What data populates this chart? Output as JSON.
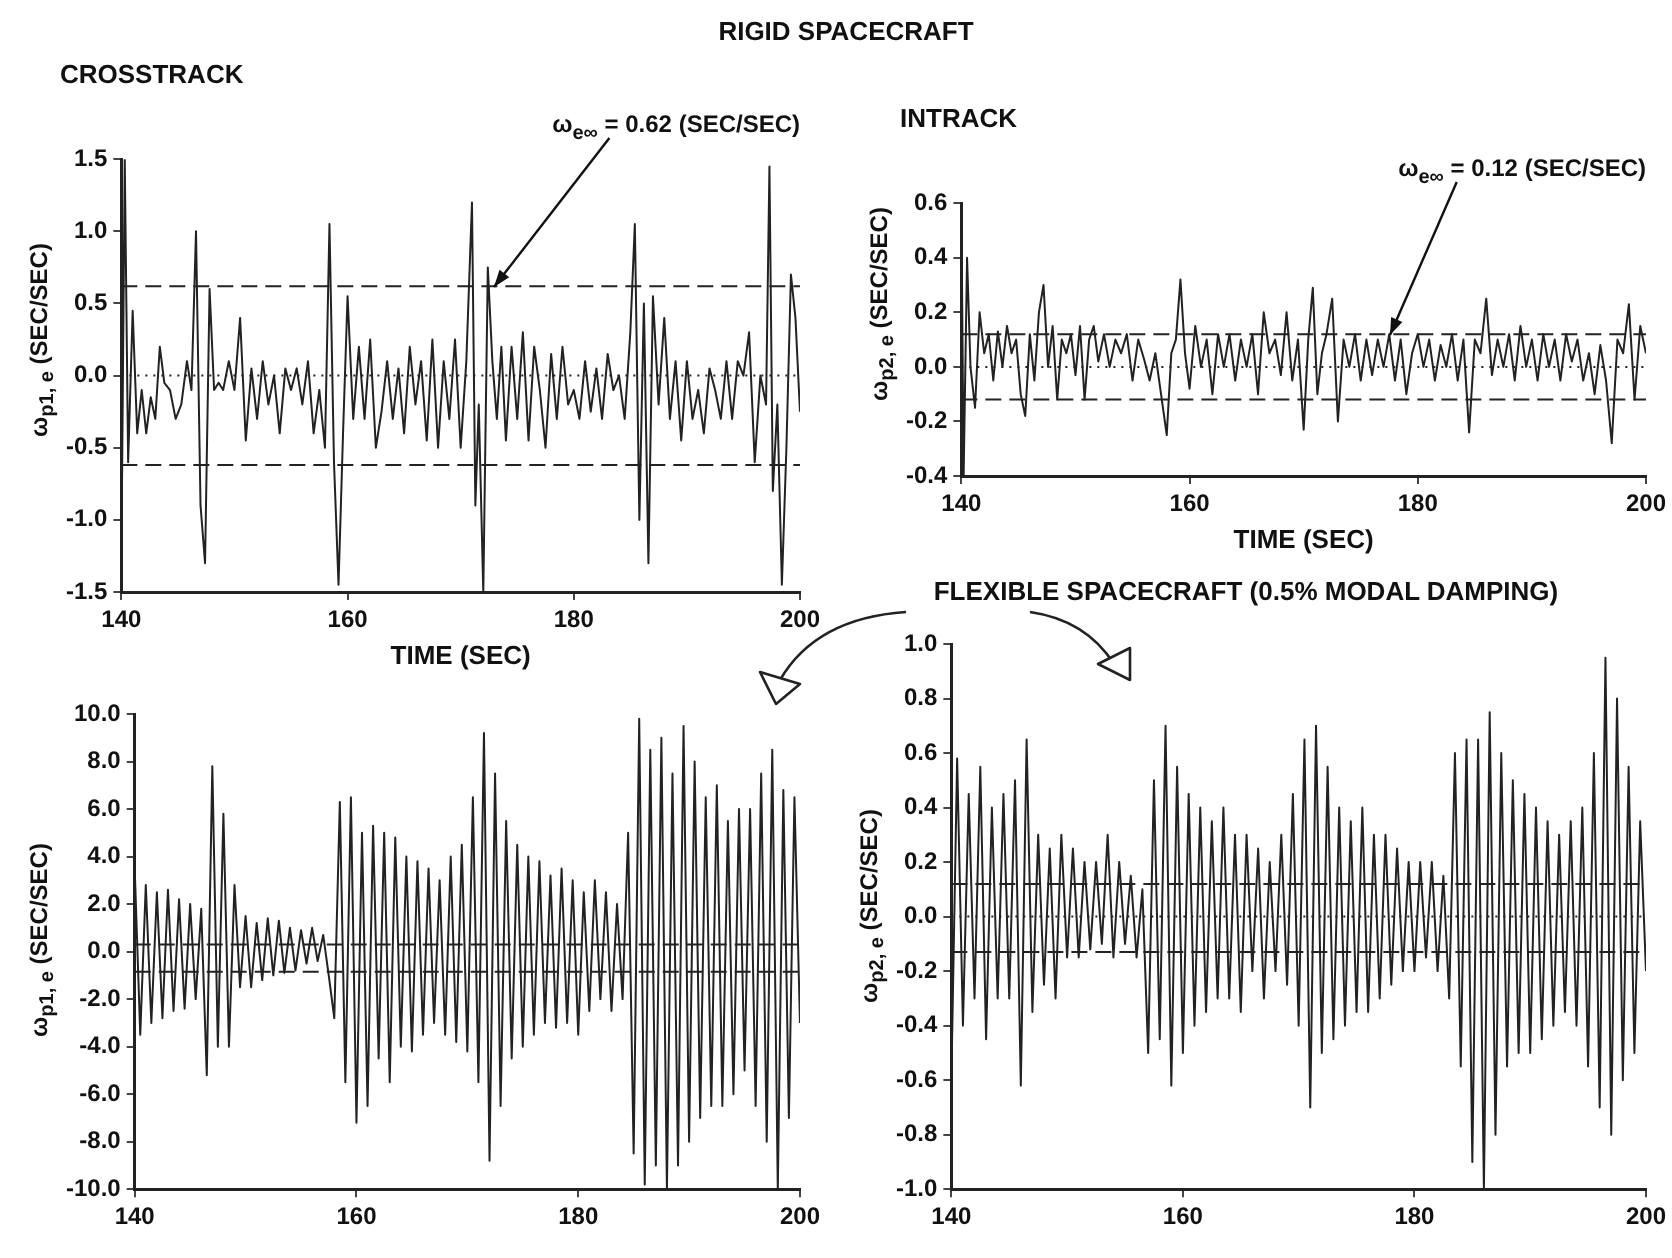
{
  "chart_data": [
    {
      "type": "line",
      "title": "RIGID SPACECRAFT",
      "subtitle": "CROSSTRACK",
      "xlabel": "TIME (SEC)",
      "ylabel": "ω$_{p1, e}$ (SEC/SEC)",
      "annotations": [
        {
          "text": "ω$_{e∞}$ = 0.62 (SEC/SEC)",
          "x": 173,
          "y": 0.62
        }
      ],
      "x": [
        140,
        140.3,
        140.6,
        141,
        141.4,
        141.8,
        142.2,
        142.6,
        143,
        143.4,
        143.8,
        144.3,
        144.8,
        145.3,
        145.8,
        146.2,
        146.6,
        147,
        147.4,
        147.8,
        148.2,
        148.6,
        149,
        149.5,
        150,
        150.5,
        151,
        151.5,
        152,
        152.5,
        153,
        153.5,
        154,
        154.5,
        155,
        155.5,
        156,
        156.5,
        157,
        157.5,
        158,
        158.4,
        158.8,
        159.2,
        159.6,
        160,
        160.5,
        161,
        161.5,
        162,
        162.5,
        163,
        163.5,
        164,
        164.5,
        165,
        165.5,
        166,
        166.5,
        167,
        167.5,
        168,
        168.5,
        169,
        169.5,
        170,
        170.5,
        171,
        171.3,
        171.6,
        172,
        172.4,
        172.8,
        173.2,
        173.6,
        174,
        174.5,
        175,
        175.5,
        176,
        176.5,
        177,
        177.5,
        178,
        178.5,
        179,
        179.5,
        180,
        180.5,
        181,
        181.5,
        182,
        182.5,
        183,
        183.5,
        184,
        184.5,
        185,
        185.4,
        185.8,
        186.2,
        186.6,
        187,
        187.5,
        188,
        188.5,
        189,
        189.5,
        190,
        190.5,
        191,
        191.5,
        192,
        192.5,
        193,
        193.5,
        194,
        194.5,
        195,
        195.5,
        196,
        196.5,
        197,
        197.3,
        197.6,
        198,
        198.4,
        198.8,
        199.2,
        199.6,
        200
      ],
      "series": [
        {
          "color": "#222222",
          "values": [
            -1.3,
            1.5,
            -0.6,
            0.45,
            -0.4,
            -0.1,
            -0.4,
            -0.15,
            -0.3,
            0.2,
            -0.05,
            -0.1,
            -0.3,
            -0.2,
            0.1,
            -0.1,
            1.0,
            -0.9,
            -1.3,
            0.6,
            -0.1,
            -0.05,
            -0.1,
            0.1,
            -0.1,
            0.4,
            -0.45,
            0.05,
            -0.3,
            0.1,
            -0.2,
            0.0,
            -0.4,
            0.05,
            -0.1,
            0.05,
            -0.2,
            0.1,
            -0.4,
            -0.1,
            -0.5,
            1.05,
            -0.6,
            -1.45,
            -0.4,
            0.55,
            -0.3,
            0.2,
            -0.3,
            0.25,
            -0.5,
            -0.25,
            0.1,
            -0.3,
            0.05,
            -0.4,
            0.2,
            -0.2,
            0.1,
            -0.45,
            0.25,
            -0.5,
            0.1,
            -0.3,
            0.25,
            -0.5,
            0.1,
            1.2,
            -0.9,
            -0.2,
            -1.5,
            0.75,
            0.1,
            -0.3,
            0.2,
            -0.45,
            0.2,
            -0.3,
            0.3,
            -0.45,
            0.2,
            -0.1,
            -0.5,
            0.15,
            -0.3,
            0.2,
            -0.2,
            -0.1,
            -0.3,
            0.1,
            -0.25,
            0.05,
            -0.3,
            0.15,
            -0.1,
            0.0,
            -0.3,
            0.3,
            1.05,
            -1.0,
            0.5,
            -1.3,
            0.55,
            -0.2,
            0.4,
            -0.3,
            0.1,
            -0.45,
            0.1,
            -0.3,
            -0.1,
            -0.4,
            0.05,
            -0.1,
            -0.3,
            0.1,
            -0.3,
            0.1,
            0.0,
            0.3,
            -0.6,
            0.0,
            -0.2,
            1.45,
            -0.8,
            -0.2,
            -1.45,
            -0.5,
            0.7,
            0.4,
            -0.25
          ]
        }
      ],
      "xlim": [
        140,
        200
      ],
      "xticks": [
        140,
        160,
        180,
        200
      ],
      "ylim": [
        -1.5,
        1.5
      ],
      "yticks": [
        {
          "value": -1.5,
          "label": "-1.5"
        },
        {
          "value": -1,
          "label": "-1.0"
        },
        {
          "value": -0.5,
          "label": "-0.5"
        },
        {
          "value": 0,
          "label": "0.0"
        },
        {
          "value": 0.5,
          "label": "0.5"
        },
        {
          "value": 1,
          "label": "1.0"
        },
        {
          "value": 1.5,
          "label": "1.5"
        }
      ],
      "ref_lines": [
        {
          "axis": "y",
          "value": 0.62,
          "line_style": "dashed"
        },
        {
          "axis": "y",
          "value": -0.62,
          "line_style": "dashed"
        },
        {
          "axis": "y",
          "value": 0,
          "line_style": "dotted"
        }
      ]
    },
    {
      "type": "line",
      "subtitle": "INTRACK",
      "xlabel": "TIME (SEC)",
      "ylabel": "ω$_{p2, e}$ (SEC/SEC)",
      "annotations": [
        {
          "text": "ω$_{e∞}$ = 0.12 (SEC/SEC)",
          "x": 177.5,
          "y": 0.12
        }
      ],
      "x": [
        140,
        140.2,
        140.5,
        140.8,
        141.2,
        141.6,
        142,
        142.4,
        142.8,
        143.2,
        143.6,
        144,
        144.4,
        144.8,
        145.2,
        145.6,
        146,
        146.4,
        146.8,
        147.2,
        147.6,
        148,
        148.4,
        148.8,
        149.2,
        149.6,
        150,
        150.4,
        150.8,
        151.2,
        151.6,
        152,
        152.5,
        153,
        153.5,
        154,
        154.5,
        155,
        155.5,
        156,
        156.5,
        157,
        157.5,
        158,
        158.4,
        158.8,
        159.2,
        159.6,
        160,
        160.5,
        161,
        161.5,
        162,
        162.5,
        163,
        163.5,
        164,
        164.5,
        165,
        165.5,
        166,
        166.5,
        167,
        167.5,
        168,
        168.5,
        169,
        169.5,
        170,
        170.4,
        170.8,
        171.2,
        171.6,
        172,
        172.5,
        173,
        173.5,
        174,
        174.5,
        175,
        175.5,
        176,
        176.5,
        177,
        177.5,
        178,
        178.5,
        179,
        179.5,
        180,
        180.5,
        181,
        181.5,
        182,
        182.5,
        183,
        183.5,
        184,
        184.5,
        185,
        185.5,
        186,
        186.5,
        187,
        187.5,
        188,
        188.5,
        189,
        189.5,
        190,
        190.5,
        191,
        191.5,
        192,
        192.5,
        193,
        193.5,
        194,
        194.5,
        195,
        195.5,
        196,
        196.5,
        197,
        197.5,
        198,
        198.5,
        199,
        199.5,
        200
      ],
      "series": [
        {
          "color": "#222222",
          "values": [
            0.6,
            -0.4,
            0.4,
            0.0,
            -0.15,
            0.2,
            0.05,
            0.12,
            -0.05,
            0.13,
            0.0,
            0.15,
            0.05,
            0.1,
            -0.1,
            -0.18,
            0.12,
            -0.05,
            0.2,
            0.3,
            0.0,
            0.15,
            -0.12,
            0.1,
            0.05,
            0.12,
            -0.03,
            0.15,
            -0.12,
            0.1,
            0.15,
            0.02,
            0.12,
            0.0,
            0.1,
            0.05,
            0.12,
            -0.05,
            0.1,
            0.03,
            -0.05,
            0.05,
            -0.1,
            -0.25,
            0.05,
            0.1,
            0.32,
            0.05,
            -0.08,
            0.15,
            0.0,
            0.1,
            -0.1,
            0.12,
            0.0,
            0.12,
            -0.05,
            0.1,
            0.0,
            0.12,
            -0.1,
            0.2,
            0.05,
            0.1,
            -0.03,
            0.2,
            -0.05,
            0.1,
            -0.23,
            0.1,
            0.29,
            -0.1,
            0.05,
            0.12,
            0.25,
            -0.2,
            0.1,
            0.0,
            0.12,
            -0.05,
            0.1,
            -0.03,
            0.1,
            0.0,
            0.12,
            -0.05,
            0.1,
            -0.1,
            0.05,
            0.12,
            0.0,
            0.1,
            -0.05,
            0.08,
            0.0,
            0.12,
            -0.05,
            0.1,
            -0.24,
            0.1,
            0.05,
            0.25,
            -0.03,
            0.1,
            0.0,
            0.12,
            -0.05,
            0.15,
            0.0,
            0.1,
            -0.05,
            0.12,
            0.0,
            0.1,
            -0.05,
            0.12,
            0.02,
            0.1,
            -0.05,
            0.05,
            -0.1,
            0.08,
            -0.05,
            -0.28,
            0.1,
            0.05,
            0.23,
            -0.12,
            0.15,
            0.05
          ]
        }
      ],
      "xlim": [
        140,
        200
      ],
      "xticks": [
        140,
        160,
        180,
        200
      ],
      "ylim": [
        -0.4,
        0.6
      ],
      "yticks": [
        {
          "value": -0.4,
          "label": "-0.4"
        },
        {
          "value": -0.2,
          "label": "-0.2"
        },
        {
          "value": 0,
          "label": "0.0"
        },
        {
          "value": 0.2,
          "label": "0.2"
        },
        {
          "value": 0.4,
          "label": "0.4"
        },
        {
          "value": 0.6,
          "label": "0.6"
        }
      ],
      "ref_lines": [
        {
          "axis": "y",
          "value": 0.12,
          "line_style": "dashed"
        },
        {
          "axis": "y",
          "value": -0.12,
          "line_style": "dashed"
        },
        {
          "axis": "y",
          "value": 0,
          "line_style": "dotted"
        }
      ]
    },
    {
      "type": "line",
      "ylabel": "ω$_{p1, e}$ (SEC/SEC)",
      "x": [
        140,
        140.5,
        141,
        141.5,
        142,
        142.5,
        143,
        143.5,
        144,
        144.5,
        145,
        145.5,
        146,
        146.5,
        147,
        147.5,
        148,
        148.5,
        149,
        149.5,
        150,
        150.5,
        151,
        151.5,
        152,
        152.5,
        153,
        153.5,
        154,
        154.5,
        155,
        155.5,
        156,
        156.5,
        157,
        157.5,
        158,
        158.5,
        159,
        159.5,
        160,
        160.5,
        161,
        161.5,
        162,
        162.5,
        163,
        163.5,
        164,
        164.5,
        165,
        165.5,
        166,
        166.5,
        167,
        167.5,
        168,
        168.5,
        169,
        169.5,
        170,
        170.5,
        171,
        171.5,
        172,
        172.5,
        173,
        173.5,
        174,
        174.5,
        175,
        175.5,
        176,
        176.5,
        177,
        177.5,
        178,
        178.5,
        179,
        179.5,
        180,
        180.5,
        181,
        181.5,
        182,
        182.5,
        183,
        183.5,
        184,
        184.5,
        185,
        185.5,
        186,
        186.5,
        187,
        187.5,
        188,
        188.5,
        189,
        189.5,
        190,
        190.5,
        191,
        191.5,
        192,
        192.5,
        193,
        193.5,
        194,
        194.5,
        195,
        195.5,
        196,
        196.5,
        197,
        197.5,
        198,
        198.5,
        199,
        199.5,
        200
      ],
      "series": [
        {
          "color": "#222222",
          "values": [
            3.5,
            -3.5,
            2.8,
            -3.0,
            2.5,
            -2.8,
            2.6,
            -2.5,
            2.2,
            -2.4,
            2.0,
            -2.0,
            1.8,
            -5.2,
            7.8,
            -4.0,
            5.8,
            -4.0,
            2.8,
            -1.5,
            1.5,
            -1.5,
            1.2,
            -1.2,
            1.4,
            -1.0,
            1.3,
            -0.9,
            1.0,
            -0.8,
            0.9,
            -0.5,
            1.0,
            -0.4,
            0.7,
            -1.0,
            -2.8,
            6.3,
            -5.5,
            6.5,
            -7.2,
            5.0,
            -6.5,
            5.3,
            -4.5,
            5.0,
            -5.5,
            4.8,
            -4.0,
            4.0,
            -4.2,
            3.8,
            -3.5,
            3.5,
            -3.0,
            3.0,
            -3.5,
            4.0,
            -3.8,
            4.5,
            -4.2,
            6.5,
            -5.5,
            9.2,
            -8.8,
            7.5,
            -6.5,
            5.5,
            -4.5,
            4.5,
            -4.0,
            4.0,
            -3.5,
            3.8,
            -3.0,
            3.2,
            -3.2,
            3.5,
            -3.0,
            3.0,
            -3.5,
            2.5,
            -2.5,
            3.0,
            -2.0,
            2.5,
            -2.5,
            2.0,
            -2.0,
            5.0,
            -8.5,
            9.8,
            -9.8,
            8.5,
            -9.0,
            9.0,
            -10.0,
            7.5,
            -9.0,
            9.5,
            -8.0,
            8.0,
            -7.0,
            6.5,
            -6.5,
            7.0,
            -6.5,
            5.5,
            -6.0,
            6.0,
            -5.0,
            6.0,
            -6.5,
            7.5,
            -8.0,
            8.5,
            -10.0,
            6.8,
            -7.0,
            6.5,
            -3.0
          ]
        }
      ],
      "xlim": [
        140,
        200
      ],
      "xticks": [
        140,
        160,
        180,
        200
      ],
      "ylim": [
        -10,
        10
      ],
      "yticks": [
        {
          "value": -10,
          "label": "-10.0"
        },
        {
          "value": -8,
          "label": "-8.0"
        },
        {
          "value": -6,
          "label": "-6.0"
        },
        {
          "value": -4,
          "label": "-4.0"
        },
        {
          "value": -2,
          "label": "-2.0"
        },
        {
          "value": 0,
          "label": "0.0"
        },
        {
          "value": 2,
          "label": "2.0"
        },
        {
          "value": 4,
          "label": "4.0"
        },
        {
          "value": 6,
          "label": "6.0"
        },
        {
          "value": 8,
          "label": "8.0"
        },
        {
          "value": 10,
          "label": "10.0"
        }
      ],
      "ref_lines": [
        {
          "axis": "y",
          "value": 0.3,
          "line_style": "dashed"
        },
        {
          "axis": "y",
          "value": -0.85,
          "line_style": "dashed"
        }
      ]
    },
    {
      "type": "line",
      "title": "FLEXIBLE SPACECRAFT (0.5% MODAL DAMPING)",
      "ylabel": "ω$_{p2, e}$ (SEC/SEC)",
      "x": [
        140,
        140.5,
        141,
        141.5,
        142,
        142.5,
        143,
        143.5,
        144,
        144.5,
        145,
        145.5,
        146,
        146.5,
        147,
        147.5,
        148,
        148.5,
        149,
        149.5,
        150,
        150.5,
        151,
        151.5,
        152,
        152.5,
        153,
        153.5,
        154,
        154.5,
        155,
        155.5,
        156,
        156.5,
        157,
        157.5,
        158,
        158.5,
        159,
        159.5,
        160,
        160.5,
        161,
        161.5,
        162,
        162.5,
        163,
        163.5,
        164,
        164.5,
        165,
        165.5,
        166,
        166.5,
        167,
        167.5,
        168,
        168.5,
        169,
        169.5,
        170,
        170.5,
        171,
        171.5,
        172,
        172.5,
        173,
        173.5,
        174,
        174.5,
        175,
        175.5,
        176,
        176.5,
        177,
        177.5,
        178,
        178.5,
        179,
        179.5,
        180,
        180.5,
        181,
        181.5,
        182,
        182.5,
        183,
        183.5,
        184,
        184.5,
        185,
        185.5,
        186,
        186.5,
        187,
        187.5,
        188,
        188.5,
        189,
        189.5,
        190,
        190.5,
        191,
        191.5,
        192,
        192.5,
        193,
        193.5,
        194,
        194.5,
        195,
        195.5,
        196,
        196.5,
        197,
        197.5,
        198,
        198.5,
        199,
        199.5,
        200
      ],
      "series": [
        {
          "color": "#222222",
          "values": [
            -0.6,
            0.58,
            -0.4,
            0.45,
            -0.3,
            0.55,
            -0.45,
            0.4,
            -0.3,
            0.45,
            -0.3,
            0.5,
            -0.62,
            0.65,
            -0.35,
            0.3,
            -0.25,
            0.25,
            -0.3,
            0.3,
            -0.15,
            0.25,
            -0.15,
            0.2,
            -0.12,
            0.2,
            -0.1,
            0.3,
            -0.15,
            0.2,
            -0.1,
            0.15,
            -0.15,
            0.1,
            -0.5,
            0.5,
            -0.45,
            0.7,
            -0.62,
            0.55,
            -0.5,
            0.45,
            -0.4,
            0.4,
            -0.35,
            0.35,
            -0.3,
            0.4,
            -0.3,
            0.3,
            -0.35,
            0.3,
            -0.2,
            0.25,
            -0.3,
            0.2,
            -0.2,
            0.3,
            -0.25,
            0.45,
            -0.4,
            0.65,
            -0.7,
            0.7,
            -0.5,
            0.55,
            -0.45,
            0.4,
            -0.4,
            0.35,
            -0.35,
            0.4,
            -0.35,
            0.3,
            -0.3,
            0.3,
            -0.25,
            0.25,
            -0.2,
            0.2,
            -0.2,
            0.2,
            -0.15,
            0.2,
            -0.2,
            0.15,
            -0.3,
            0.6,
            -0.55,
            0.65,
            -0.9,
            0.65,
            -1.0,
            0.75,
            -0.8,
            0.6,
            -0.55,
            0.5,
            -0.5,
            0.45,
            -0.5,
            0.4,
            -0.45,
            0.35,
            -0.4,
            0.3,
            -0.35,
            0.35,
            -0.4,
            0.4,
            -0.55,
            0.6,
            -0.7,
            0.95,
            -0.8,
            0.8,
            -0.6,
            0.55,
            -0.5,
            0.35,
            -0.2
          ]
        }
      ],
      "xlim": [
        140,
        200
      ],
      "xticks": [
        140,
        160,
        180,
        200
      ],
      "ylim": [
        -1,
        1
      ],
      "yticks": [
        {
          "value": -1,
          "label": "-1.0"
        },
        {
          "value": -0.8,
          "label": "-0.8"
        },
        {
          "value": -0.6,
          "label": "-0.6"
        },
        {
          "value": -0.4,
          "label": "-0.4"
        },
        {
          "value": -0.2,
          "label": "-0.2"
        },
        {
          "value": 0,
          "label": "0.0"
        },
        {
          "value": 0.2,
          "label": "0.2"
        },
        {
          "value": 0.4,
          "label": "0.4"
        },
        {
          "value": 0.6,
          "label": "0.6"
        },
        {
          "value": 0.8,
          "label": "0.8"
        },
        {
          "value": 1,
          "label": "1.0"
        }
      ],
      "ref_lines": [
        {
          "axis": "y",
          "value": 0.12,
          "line_style": "dashed"
        },
        {
          "axis": "y",
          "value": -0.13,
          "line_style": "dashed"
        },
        {
          "axis": "y",
          "value": 0,
          "line_style": "dotted"
        }
      ]
    }
  ]
}
